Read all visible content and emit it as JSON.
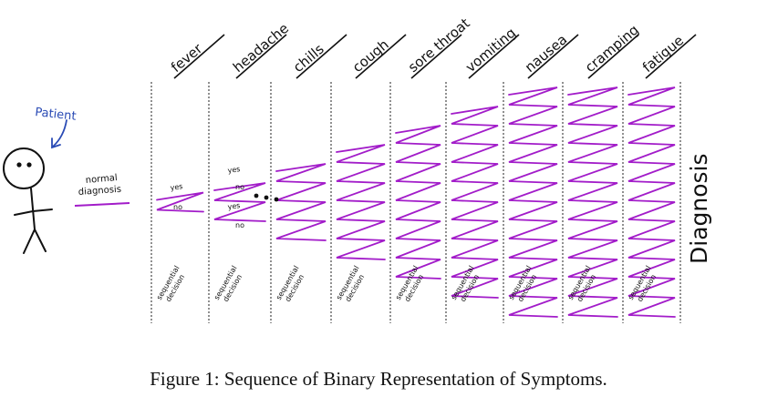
{
  "patient_label": "Patient",
  "normal_diagnosis": [
    "normal",
    "diagnosis"
  ],
  "yes_label": "yes",
  "no_label": "no",
  "symptoms": [
    "fever",
    "headache",
    "chills",
    "cough",
    "sore throat",
    "vomiting",
    "nausea",
    "cramping",
    "fatigue"
  ],
  "sequential_decision": [
    "sequential",
    "decision"
  ],
  "diagnosis_label": "Diagnosis",
  "caption": "Figure 1: Sequence of Binary Representation of Symptoms.",
  "colors": {
    "branch": "#a21cc9",
    "patient_label": "#2a4bb5",
    "ink": "#111111"
  },
  "zigzag_levels": [
    1,
    2,
    4,
    6,
    8,
    10,
    12,
    12,
    12
  ]
}
